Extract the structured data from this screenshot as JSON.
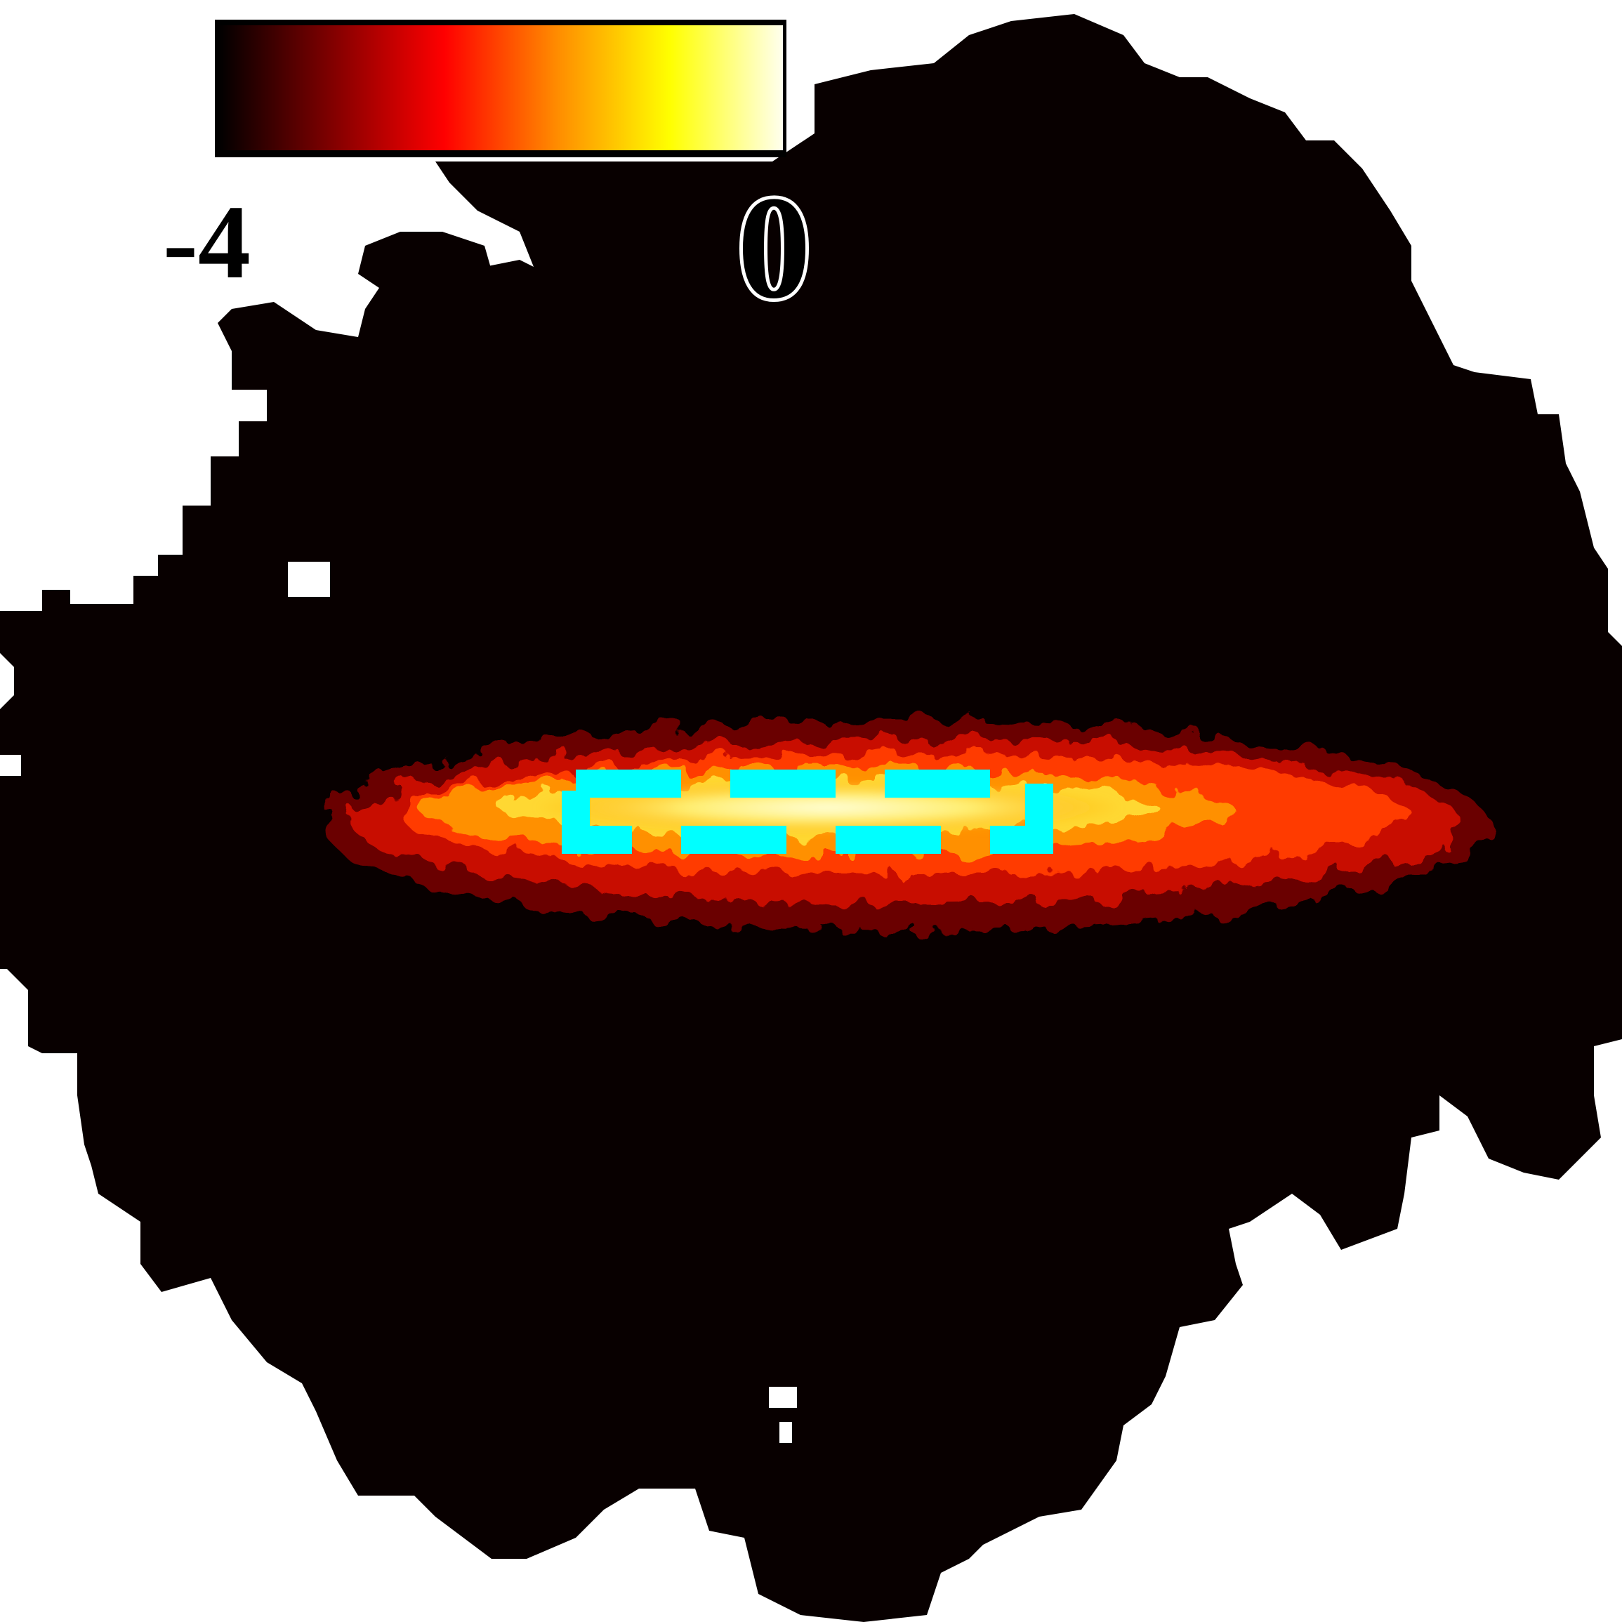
{
  "colorbar": {
    "min_label": "-4",
    "max_label": "0",
    "colors": [
      "#000000",
      "#800000",
      "#ff0000",
      "#ff8c00",
      "#ffff00",
      "#ffffee"
    ]
  },
  "image": {
    "background_color": "#ffffff",
    "region_color": "#080000",
    "overlay_color": "#00ffff",
    "overlay_style": "dashed-rectangle"
  }
}
